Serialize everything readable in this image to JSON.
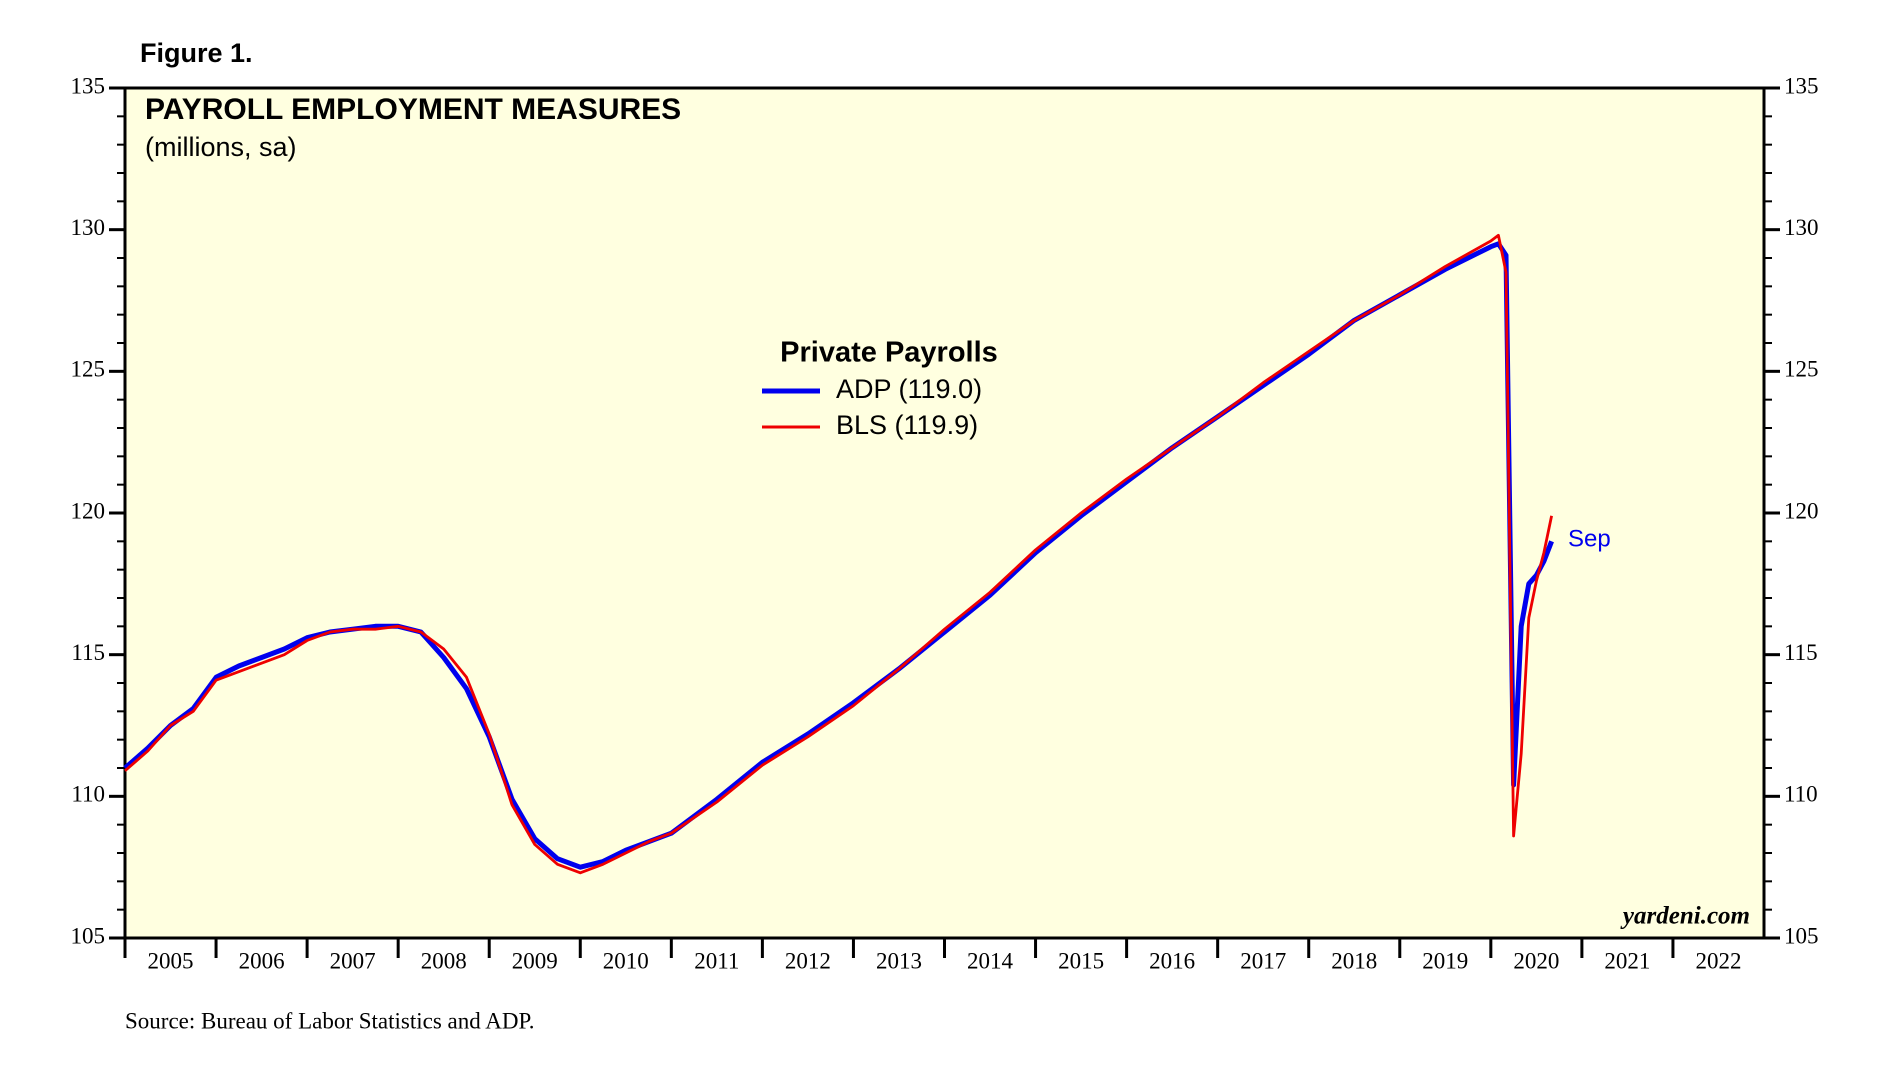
{
  "chart_data": {
    "type": "line",
    "figure_label": "Figure 1.",
    "title": "PAYROLL EMPLOYMENT MEASURES",
    "subtitle": "(millions, sa)",
    "legend_title": "Private Payrolls",
    "annotation": "Sep",
    "watermark": "yardeni.com",
    "source": "Source: Bureau of Labor Statistics and ADP.",
    "background": "#ffffe0",
    "xlim": [
      2005,
      2023
    ],
    "xticks": [
      2005,
      2006,
      2007,
      2008,
      2009,
      2010,
      2011,
      2012,
      2013,
      2014,
      2015,
      2016,
      2017,
      2018,
      2019,
      2020,
      2021,
      2022
    ],
    "ylim": [
      105,
      135
    ],
    "yticks": [
      105,
      110,
      115,
      120,
      125,
      130,
      135
    ],
    "yminorticks": [
      106,
      107,
      108,
      109,
      111,
      112,
      113,
      114,
      116,
      117,
      118,
      119,
      121,
      122,
      123,
      124,
      126,
      127,
      128,
      129,
      131,
      132,
      133,
      134
    ],
    "x": [
      2005.0,
      2005.25,
      2005.5,
      2005.75,
      2006.0,
      2006.25,
      2006.5,
      2006.75,
      2007.0,
      2007.25,
      2007.5,
      2007.75,
      2008.0,
      2008.25,
      2008.5,
      2008.75,
      2009.0,
      2009.25,
      2009.5,
      2009.75,
      2010.0,
      2010.25,
      2010.5,
      2010.75,
      2011.0,
      2011.5,
      2012.0,
      2012.5,
      2013.0,
      2013.5,
      2014.0,
      2014.5,
      2015.0,
      2015.5,
      2016.0,
      2016.5,
      2017.0,
      2017.5,
      2018.0,
      2018.5,
      2019.0,
      2019.5,
      2020.0,
      2020.083,
      2020.167,
      2020.25,
      2020.333,
      2020.417,
      2020.5,
      2020.583,
      2020.667
    ],
    "series": [
      {
        "name": "ADP (119.0)",
        "color": "#0000ee",
        "values": [
          111.0,
          111.7,
          112.5,
          113.1,
          114.2,
          114.6,
          114.9,
          115.2,
          115.6,
          115.8,
          115.9,
          116.0,
          116.0,
          115.8,
          114.9,
          113.8,
          112.1,
          109.9,
          108.5,
          107.8,
          107.5,
          107.7,
          108.1,
          108.4,
          108.7,
          109.9,
          111.2,
          112.2,
          113.3,
          114.5,
          115.8,
          117.1,
          118.6,
          119.9,
          121.1,
          122.3,
          123.4,
          124.5,
          125.6,
          126.8,
          127.7,
          128.6,
          129.4,
          129.5,
          129.1,
          110.4,
          116.0,
          117.5,
          117.8,
          118.3,
          119.0
        ]
      },
      {
        "name": "BLS (119.9)",
        "color": "#ee0000",
        "values": [
          110.9,
          111.6,
          112.5,
          113.0,
          114.1,
          114.4,
          114.7,
          115.0,
          115.5,
          115.8,
          115.9,
          115.9,
          116.0,
          115.8,
          115.2,
          114.2,
          112.2,
          109.7,
          108.3,
          107.6,
          107.3,
          107.6,
          108.0,
          108.4,
          108.7,
          109.8,
          111.1,
          112.1,
          113.2,
          114.5,
          115.9,
          117.2,
          118.7,
          120.0,
          121.2,
          122.3,
          123.4,
          124.6,
          125.7,
          126.8,
          127.7,
          128.7,
          129.6,
          129.8,
          128.5,
          108.6,
          111.5,
          116.3,
          117.6,
          118.6,
          119.9
        ]
      }
    ]
  }
}
